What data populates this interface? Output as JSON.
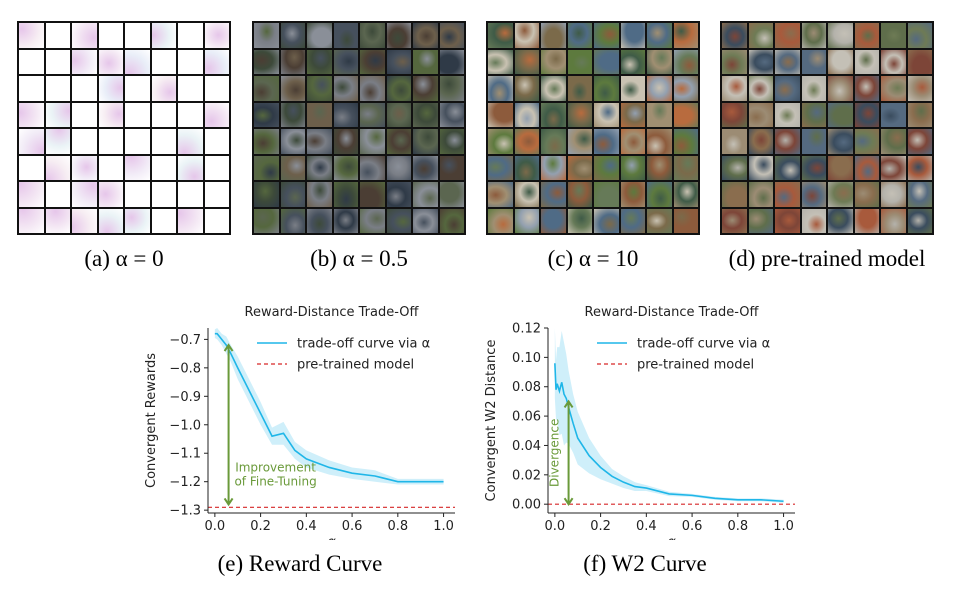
{
  "figure": {
    "captions": {
      "a": "(a) α = 0",
      "b": "(b) α = 0.5",
      "c": "(c) α = 10",
      "d": "(d) pre-trained model",
      "e": "(e) Reward Curve",
      "f": "(f) W2 Curve"
    },
    "colors": {
      "curve": "#1fb6e8",
      "band": "#bfe9f8",
      "baseline": "#d62728",
      "annotation": "#6a9a3a"
    }
  },
  "chart_data": [
    {
      "type": "line",
      "title": "Reward-Distance Trade-Off",
      "xlabel": "α",
      "ylabel": "Convergent Rewards",
      "xlim": [
        -0.03,
        1.05
      ],
      "ylim": [
        -1.31,
        -0.66
      ],
      "xticks": [
        0.0,
        0.2,
        0.4,
        0.6,
        0.8,
        1.0
      ],
      "xtick_labels": [
        "0.0",
        "0.2",
        "0.4",
        "0.6",
        "0.8",
        "1.0"
      ],
      "yticks": [
        -0.7,
        -0.8,
        -0.9,
        -1.0,
        -1.1,
        -1.2,
        -1.3
      ],
      "ytick_labels": [
        "−0.7",
        "−0.8",
        "−0.9",
        "−1.0",
        "−1.1",
        "−1.2",
        "−1.3"
      ],
      "legend": [
        "trade-off curve via α",
        "pre-trained model"
      ],
      "legend_position": "top-right",
      "series": [
        {
          "name": "trade-off curve via α",
          "x": [
            0.0,
            0.01,
            0.02,
            0.03,
            0.04,
            0.05,
            0.07,
            0.1,
            0.15,
            0.2,
            0.25,
            0.3,
            0.35,
            0.4,
            0.5,
            0.6,
            0.7,
            0.8,
            0.9,
            1.0
          ],
          "y": [
            -0.68,
            -0.68,
            -0.69,
            -0.7,
            -0.71,
            -0.72,
            -0.75,
            -0.8,
            -0.88,
            -0.96,
            -1.04,
            -1.03,
            -1.09,
            -1.12,
            -1.15,
            -1.17,
            -1.18,
            -1.2,
            -1.2,
            -1.2
          ],
          "band": [
            0.015,
            0.02,
            0.02,
            0.02,
            0.025,
            0.03,
            0.03,
            0.04,
            0.04,
            0.04,
            0.03,
            0.04,
            0.03,
            0.03,
            0.025,
            0.02,
            0.02,
            0.01,
            0.01,
            0.01
          ]
        },
        {
          "name": "pre-trained model",
          "y": -1.29
        }
      ],
      "annotation": {
        "text": [
          "Improvement",
          "of Fine-Tuning"
        ],
        "x": 0.06,
        "y_from": -1.28,
        "y_to": -0.72
      }
    },
    {
      "type": "line",
      "title": "Reward-Distance Trade-Off",
      "xlabel": "α",
      "ylabel": "Convergent W2 Distance",
      "xlim": [
        -0.03,
        1.05
      ],
      "ylim": [
        -0.006,
        0.12
      ],
      "xticks": [
        0.0,
        0.2,
        0.4,
        0.6,
        0.8,
        1.0
      ],
      "xtick_labels": [
        "0.0",
        "0.2",
        "0.4",
        "0.6",
        "0.8",
        "1.0"
      ],
      "yticks": [
        0.0,
        0.02,
        0.04,
        0.06,
        0.08,
        0.1,
        0.12
      ],
      "ytick_labels": [
        "0.00",
        "0.02",
        "0.04",
        "0.06",
        "0.08",
        "0.10",
        "0.12"
      ],
      "legend": [
        "trade-off curve via α",
        "pre-trained model"
      ],
      "legend_position": "top-right",
      "series": [
        {
          "name": "trade-off curve via α",
          "x": [
            0.0,
            0.005,
            0.01,
            0.02,
            0.03,
            0.04,
            0.05,
            0.06,
            0.08,
            0.1,
            0.15,
            0.2,
            0.25,
            0.3,
            0.35,
            0.4,
            0.5,
            0.6,
            0.7,
            0.8,
            0.9,
            1.0
          ],
          "y": [
            0.096,
            0.078,
            0.082,
            0.077,
            0.083,
            0.075,
            0.072,
            0.066,
            0.055,
            0.045,
            0.033,
            0.025,
            0.019,
            0.015,
            0.012,
            0.011,
            0.007,
            0.006,
            0.004,
            0.003,
            0.003,
            0.002
          ],
          "band": [
            0.024,
            0.02,
            0.025,
            0.03,
            0.035,
            0.035,
            0.03,
            0.025,
            0.02,
            0.018,
            0.012,
            0.008,
            0.005,
            0.004,
            0.003,
            0.002,
            0.0015,
            0.001,
            0.001,
            0.001,
            0.001,
            0.001
          ]
        },
        {
          "name": "pre-trained model",
          "y": 0.0
        }
      ],
      "annotation": {
        "text": [
          "Divergence"
        ],
        "x": 0.06,
        "y_from": 0.0,
        "y_to": 0.07
      }
    }
  ]
}
